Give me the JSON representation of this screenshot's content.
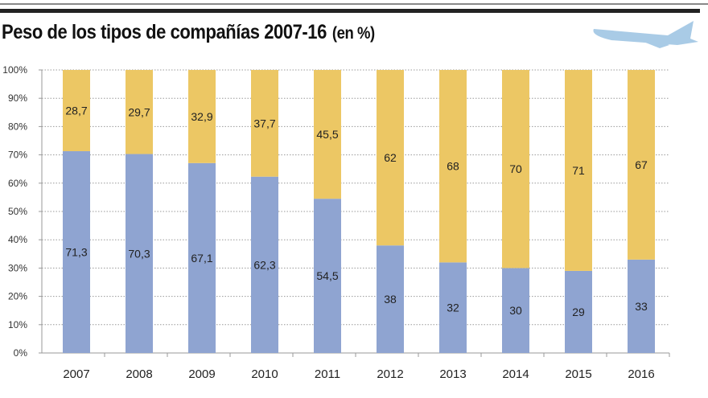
{
  "chart_data": {
    "type": "bar",
    "stacked": true,
    "title": "Peso de los tipos de compañías 2007-16",
    "unit": "(en %)",
    "categories": [
      "2007",
      "2008",
      "2009",
      "2010",
      "2011",
      "2012",
      "2013",
      "2014",
      "2015",
      "2016"
    ],
    "series": [
      {
        "color": "#8fa4d1",
        "values": [
          71.3,
          70.3,
          67.1,
          62.3,
          54.5,
          38,
          32,
          30,
          29,
          33
        ],
        "labels": [
          "71,3",
          "70,3",
          "67,1",
          "62,3",
          "54,5",
          "38",
          "32",
          "30",
          "29",
          "33"
        ]
      },
      {
        "color": "#ecc764",
        "values": [
          28.7,
          29.7,
          32.9,
          37.7,
          45.5,
          62,
          68,
          70,
          71,
          67
        ],
        "labels": [
          "28,7",
          "29,7",
          "32,9",
          "37,7",
          "45,5",
          "62",
          "68",
          "70",
          "71",
          "67"
        ]
      }
    ],
    "ylim": [
      0,
      100
    ],
    "yticks": [
      "0%",
      "10%",
      "20%",
      "30%",
      "40%",
      "50%",
      "60%",
      "70%",
      "80%",
      "90%",
      "100%"
    ],
    "grid": true,
    "legend": "none",
    "decoration": "airplane-icon"
  }
}
